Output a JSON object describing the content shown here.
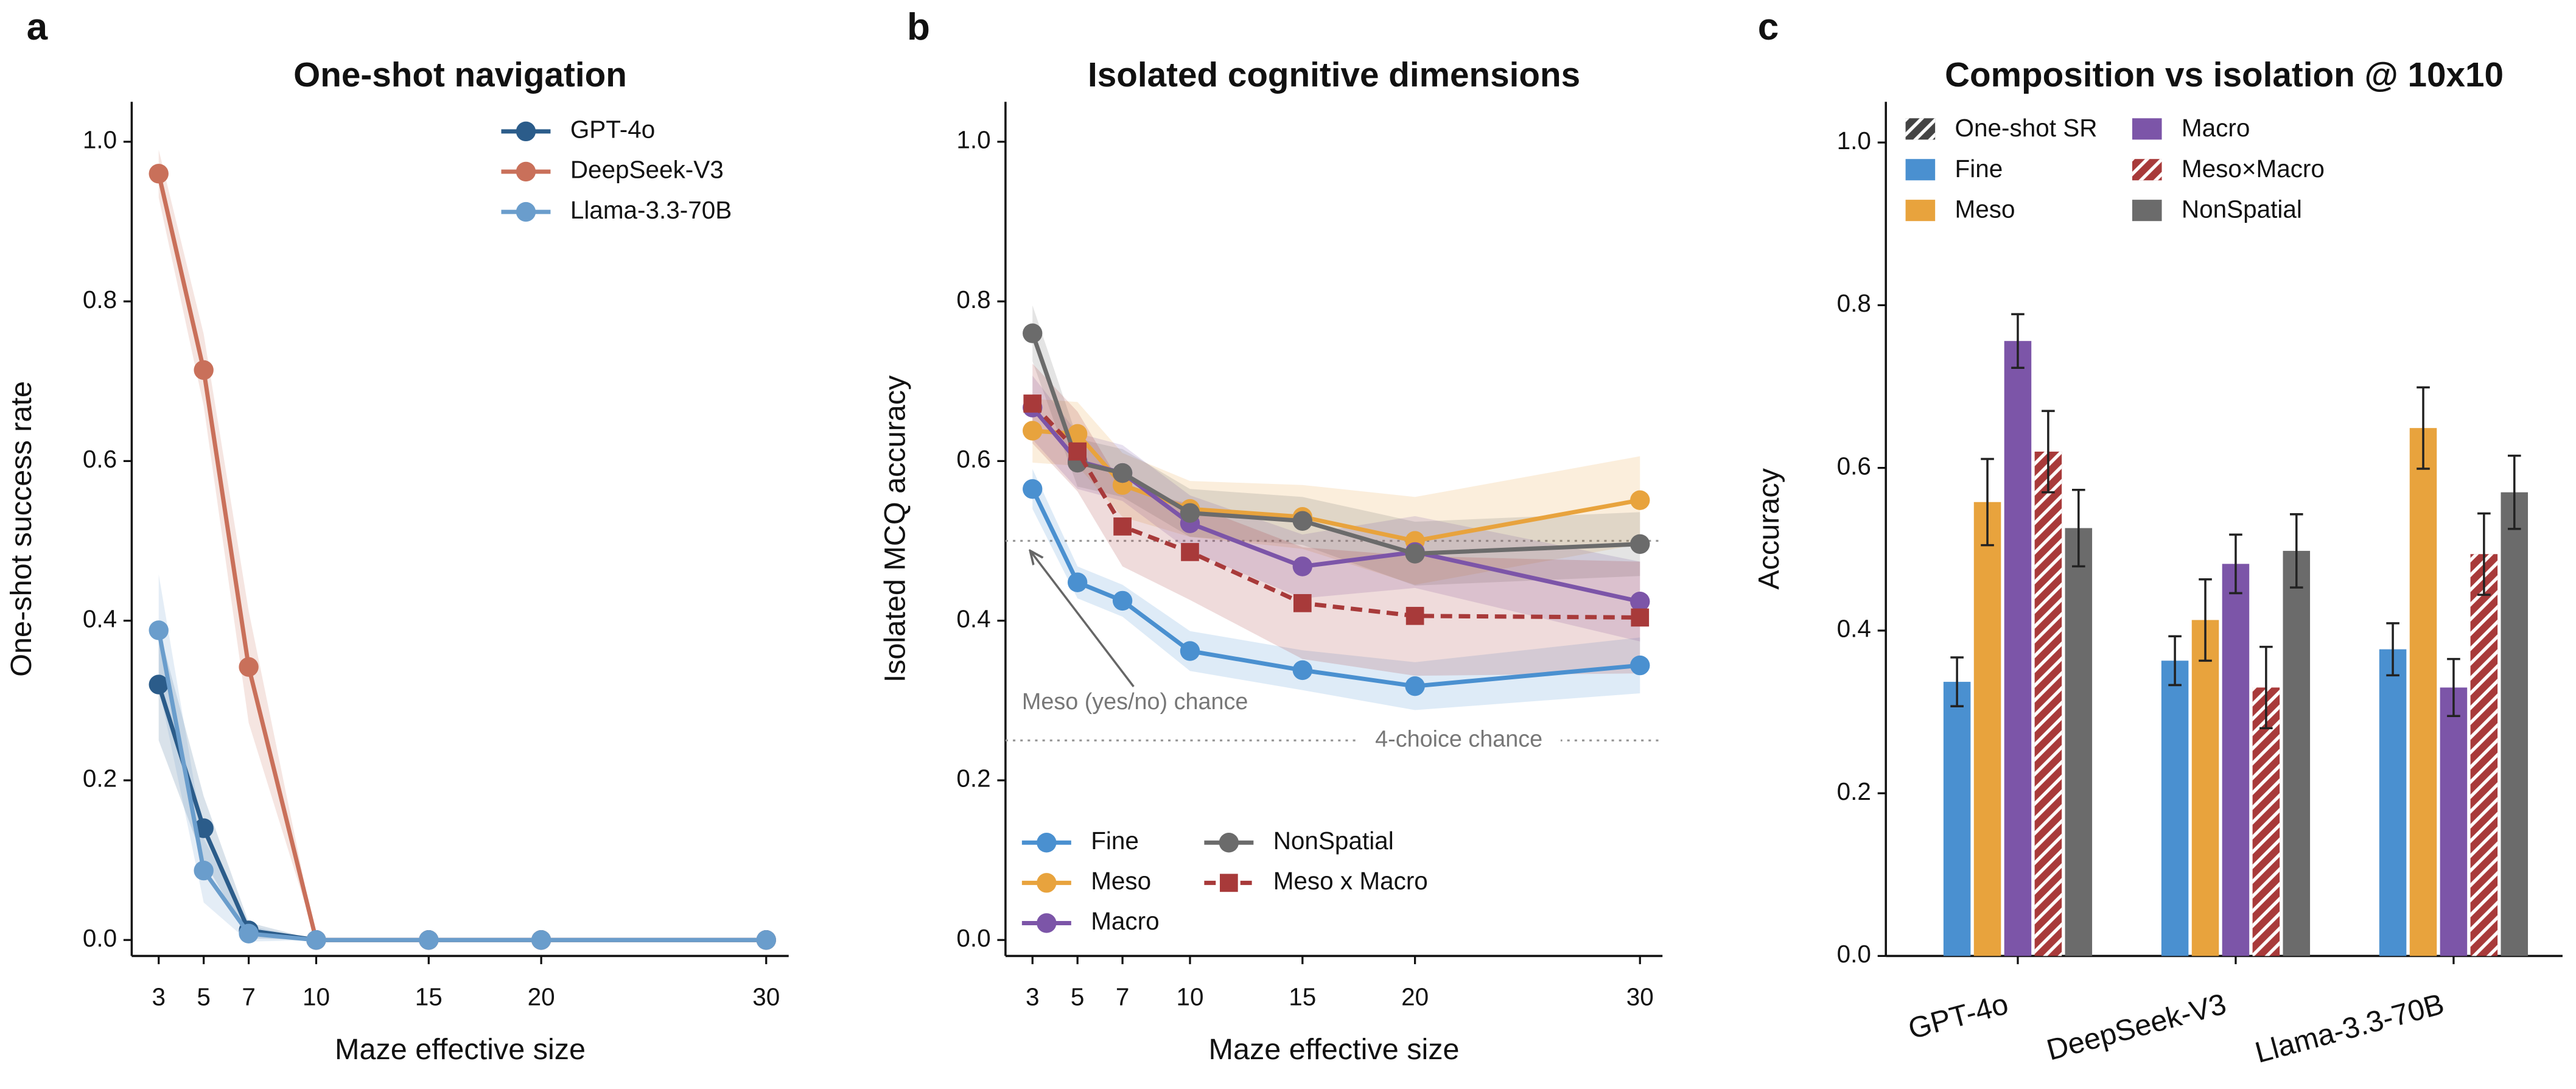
{
  "chart_data": [
    {
      "type": "line",
      "panel": "a",
      "title": "One-shot navigation",
      "xlabel": "Maze effective size",
      "ylabel": "One-shot success rate",
      "x": [
        3,
        5,
        7,
        10,
        15,
        20,
        30
      ],
      "xlim": [
        1.8,
        31
      ],
      "xticks": [
        3,
        5,
        7,
        10,
        15,
        20,
        30
      ],
      "ylim": [
        -0.02,
        1.05
      ],
      "yticks": [
        {
          "value": 0,
          "label": "0.0"
        },
        0.2,
        0.4,
        0.6,
        0.8,
        {
          "value": 1,
          "label": "1.0"
        }
      ],
      "legend": "upper right",
      "series": [
        {
          "name": "GPT-4o",
          "color": "#2b5c8a",
          "values": [
            0.32,
            0.14,
            0.012,
            0,
            0,
            0,
            0
          ],
          "ci": [
            0.07,
            0.04,
            0.01,
            0,
            0,
            0,
            0
          ]
        },
        {
          "name": "DeepSeek-V3",
          "color": "#c9705a",
          "values": [
            0.96,
            0.714,
            0.342,
            0,
            0,
            0,
            0
          ],
          "ci": [
            0.03,
            0.045,
            0.07,
            0,
            0,
            0,
            0
          ]
        },
        {
          "name": "Llama-3.3-70B",
          "color": "#6a9dcc",
          "values": [
            0.388,
            0.087,
            0.008,
            0,
            0,
            0,
            0
          ],
          "ci": [
            0.07,
            0.04,
            0.01,
            0,
            0,
            0,
            0
          ]
        }
      ]
    },
    {
      "type": "line",
      "panel": "b",
      "title": "Isolated cognitive dimensions",
      "xlabel": "Maze effective size",
      "ylabel": "Isolated MCQ accuracy",
      "x": [
        3,
        5,
        7,
        10,
        15,
        20,
        30
      ],
      "xlim": [
        1.8,
        31
      ],
      "xticks": [
        3,
        5,
        7,
        10,
        15,
        20,
        30
      ],
      "ylim": [
        -0.02,
        1.05
      ],
      "yticks": [
        {
          "value": 0,
          "label": "0.0"
        },
        0.2,
        0.4,
        0.6,
        0.8,
        {
          "value": 1,
          "label": "1.0"
        }
      ],
      "legend": "lower left",
      "hlines": [
        {
          "y": 0.5,
          "label": "Meso (yes/no) chance"
        },
        {
          "y": 0.25,
          "label": "4-choice chance"
        }
      ],
      "series": [
        {
          "name": "Fine",
          "color": "#4a90d0",
          "values": [
            0.565,
            0.448,
            0.425,
            0.362,
            0.338,
            0.318,
            0.344
          ],
          "ci": [
            0.025,
            0.02,
            0.02,
            0.025,
            0.025,
            0.03,
            0.035
          ]
        },
        {
          "name": "Meso",
          "color": "#e8a33d",
          "values": [
            0.638,
            0.634,
            0.57,
            0.54,
            0.53,
            0.5,
            0.551
          ],
          "ci": [
            0.04,
            0.04,
            0.04,
            0.035,
            0.04,
            0.055,
            0.055
          ]
        },
        {
          "name": "Macro",
          "color": "#7c55a8",
          "values": [
            0.667,
            0.6,
            0.585,
            0.522,
            0.468,
            0.486,
            0.424
          ],
          "ci": [
            0.04,
            0.035,
            0.035,
            0.035,
            0.04,
            0.045,
            0.05
          ]
        },
        {
          "name": "NonSpatial",
          "color": "#6b6b6b",
          "values": [
            0.76,
            0.598,
            0.585,
            0.535,
            0.525,
            0.484,
            0.496
          ],
          "ci": [
            0.035,
            0.03,
            0.03,
            0.03,
            0.03,
            0.04,
            0.04
          ]
        },
        {
          "name": "Meso x Macro",
          "color": "#a83a3a",
          "dashed": true,
          "marker": "square",
          "values": [
            0.672,
            0.612,
            0.518,
            0.486,
            0.422,
            0.406,
            0.404
          ],
          "ci": [
            0.05,
            0.05,
            0.05,
            0.06,
            0.07,
            0.075,
            0.07
          ]
        }
      ]
    },
    {
      "type": "bar",
      "panel": "c",
      "title": "Composition vs isolation @ 10x10",
      "ylabel": "Accuracy",
      "categories": [
        "GPT-4o",
        "DeepSeek-V3",
        "Llama-3.3-70B"
      ],
      "ylim": [
        0,
        1.05
      ],
      "yticks": [
        {
          "value": 0,
          "label": "0.0"
        },
        0.2,
        0.4,
        0.6,
        0.8,
        {
          "value": 1,
          "label": "1.0"
        }
      ],
      "legend": "upper left",
      "hatch_legend": "One-shot SR",
      "series": [
        {
          "name": "Fine",
          "color": "#4a90d0",
          "values": [
            0.337,
            0.363,
            0.377
          ],
          "errors": [
            0.03,
            0.03,
            0.032
          ]
        },
        {
          "name": "Meso",
          "color": "#e8a33d",
          "values": [
            0.558,
            0.413,
            0.649
          ],
          "errors": [
            0.053,
            0.05,
            0.05
          ]
        },
        {
          "name": "Macro",
          "color": "#7c55a8",
          "values": [
            0.756,
            0.482,
            0.33
          ],
          "errors": [
            0.033,
            0.036,
            0.035
          ]
        },
        {
          "name": "Meso×Macro",
          "color": "#a83a3a",
          "hatched": true,
          "values": [
            0.62,
            0.33,
            0.494
          ],
          "errors": [
            0.05,
            0.05,
            0.05
          ]
        },
        {
          "name": "NonSpatial",
          "color": "#6b6b6b",
          "values": [
            0.526,
            0.498,
            0.57
          ],
          "errors": [
            0.047,
            0.045,
            0.045
          ]
        }
      ]
    }
  ]
}
